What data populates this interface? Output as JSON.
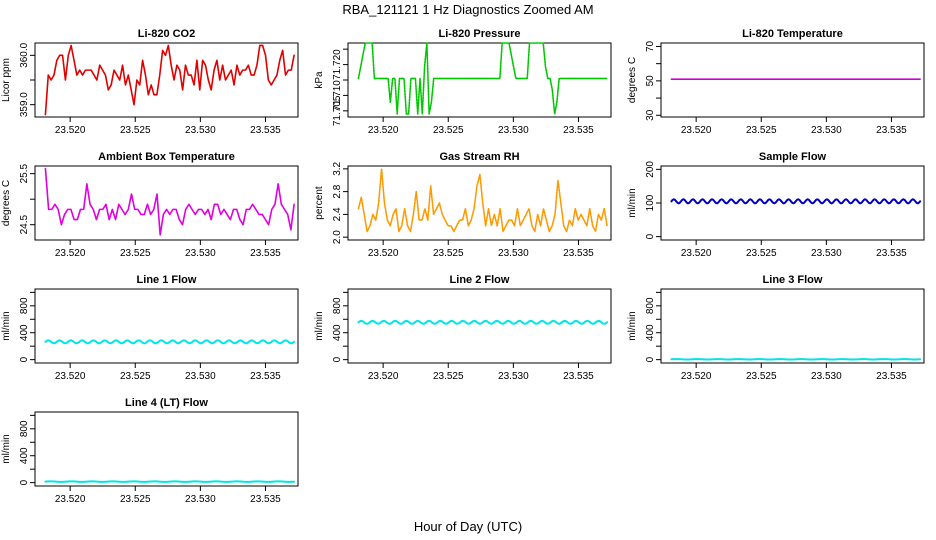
{
  "figure": {
    "title": "RBA_121121  1 Hz Diagnostics Zoomed AM",
    "xlabel": "Hour of Day (UTC)"
  },
  "chart_data": [
    {
      "id": "co2",
      "type": "line",
      "title": "Li-820 CO2",
      "ylabel": "Licor ppm",
      "color": "#e00000",
      "style": "solid",
      "ylim": [
        358.75,
        360.25
      ],
      "yticks": [
        359.0,
        359.5,
        360.0
      ],
      "yticklabels": [
        "359.0",
        "",
        "360.0"
      ],
      "xlim": [
        23.5173,
        23.5375
      ],
      "xticks": [
        23.52,
        23.525,
        23.53,
        23.535
      ],
      "xticklabels": [
        "23.520",
        "23.525",
        "23.530",
        "23.535"
      ],
      "x_range": [
        23.5181,
        23.5372
      ],
      "values": [
        358.8,
        359.6,
        359.5,
        359.6,
        359.9,
        360.0,
        360.0,
        359.5,
        360.0,
        360.2,
        359.9,
        359.6,
        359.7,
        359.6,
        359.7,
        359.7,
        359.7,
        359.6,
        359.5,
        359.8,
        359.7,
        359.6,
        359.3,
        359.4,
        359.7,
        359.6,
        359.5,
        359.8,
        359.4,
        359.6,
        359.3,
        359.0,
        359.5,
        359.4,
        359.9,
        359.6,
        359.2,
        359.4,
        359.2,
        359.2,
        359.6,
        360.1,
        360.0,
        360.2,
        359.8,
        359.5,
        359.8,
        359.7,
        359.3,
        359.8,
        359.6,
        359.6,
        359.4,
        359.9,
        359.3,
        359.9,
        359.8,
        359.5,
        359.3,
        359.7,
        359.9,
        359.5,
        359.8,
        359.5,
        359.6,
        359.7,
        359.4,
        359.8,
        359.6,
        359.7,
        359.7,
        359.8,
        359.6,
        359.6,
        359.8,
        360.2,
        360.2,
        360.0,
        359.5,
        359.4,
        359.5,
        359.6,
        359.9,
        360.1,
        359.6,
        359.7,
        359.7,
        360.0
      ]
    },
    {
      "id": "pressure",
      "type": "line",
      "title": "Li-820 Pressure",
      "ylabel": "kPa",
      "color": "#00c800",
      "style": "dotted",
      "ylim": [
        71.703,
        71.727
      ],
      "yticks": [
        71.705,
        71.71,
        71.715,
        71.72,
        71.725
      ],
      "yticklabels": [
        "71.705",
        "71.710",
        "",
        "71.720",
        ""
      ],
      "xlim": [
        23.5173,
        23.5375
      ],
      "xticks": [
        23.52,
        23.525,
        23.53,
        23.535
      ],
      "xticklabels": [
        "23.520",
        "23.525",
        "23.530",
        "23.535"
      ],
      "x_range": [
        23.5181,
        23.5372
      ],
      "values": [
        71.7155,
        71.7193,
        71.7232,
        71.727,
        71.727,
        71.727,
        71.727,
        71.7155,
        71.7155,
        71.7155,
        71.7155,
        71.7155,
        71.7155,
        71.7155,
        71.7078,
        71.7155,
        71.7155,
        71.704,
        71.7155,
        71.7155,
        71.7155,
        71.704,
        71.704,
        71.7155,
        71.7155,
        71.7155,
        71.704,
        71.7155,
        71.704,
        71.7193,
        71.727,
        71.704,
        71.7078,
        71.7155,
        71.7155,
        71.7155,
        71.7155,
        71.7155,
        71.7155,
        71.7155,
        71.7155,
        71.7155,
        71.7155,
        71.7155,
        71.7155,
        71.7155,
        71.7155,
        71.7155,
        71.7155,
        71.7155,
        71.7155,
        71.7155,
        71.7155,
        71.7155,
        71.7155,
        71.7155,
        71.7155,
        71.7155,
        71.7155,
        71.7155,
        71.7155,
        71.7155,
        71.7155,
        71.727,
        71.727,
        71.727,
        71.727,
        71.7232,
        71.7193,
        71.7155,
        71.7155,
        71.7155,
        71.7155,
        71.7155,
        71.7155,
        71.727,
        71.727,
        71.727,
        71.727,
        71.727,
        71.727,
        71.727,
        71.7193,
        71.7155,
        71.7155,
        71.7117,
        71.704,
        71.7078,
        71.7155,
        71.7155,
        71.7155,
        71.7155,
        71.7155,
        71.7155,
        71.7155,
        71.7155,
        71.7155,
        71.7155,
        71.7155,
        71.7155,
        71.7155,
        71.7155,
        71.7155,
        71.7155,
        71.7155,
        71.7155,
        71.7155,
        71.7155,
        71.7155,
        71.7155
      ]
    },
    {
      "id": "temperature",
      "type": "line",
      "title": "Li-820 Temperature",
      "ylabel": "degrees C",
      "color": "#d000d0",
      "style": "solid",
      "ylim": [
        29,
        72
      ],
      "yticks": [
        30,
        40,
        50,
        60,
        70
      ],
      "yticklabels": [
        "30",
        "",
        "50",
        "",
        "70"
      ],
      "xlim": [
        23.5173,
        23.5375
      ],
      "xticks": [
        23.52,
        23.525,
        23.53,
        23.535
      ],
      "xticklabels": [
        "23.520",
        "23.525",
        "23.530",
        "23.535"
      ],
      "x_range": [
        23.5181,
        23.5372
      ],
      "values": [
        51,
        51
      ]
    },
    {
      "id": "box_temp",
      "type": "line",
      "title": "Ambient Box Temperature",
      "ylabel": "degrees C",
      "color": "#e000e0",
      "style": "solid",
      "ylim": [
        24.2,
        25.65
      ],
      "yticks": [
        24.5,
        25.0,
        25.5
      ],
      "yticklabels": [
        "24.5",
        "",
        "25.5"
      ],
      "xlim": [
        23.5173,
        23.5375
      ],
      "xticks": [
        23.52,
        23.525,
        23.53,
        23.535
      ],
      "xticklabels": [
        "23.520",
        "23.525",
        "23.530",
        "23.535"
      ],
      "x_range": [
        23.5181,
        23.5372
      ],
      "values": [
        25.6,
        24.8,
        24.8,
        24.9,
        24.8,
        24.5,
        24.7,
        24.8,
        24.8,
        24.6,
        24.6,
        24.8,
        24.8,
        25.3,
        24.9,
        24.8,
        24.6,
        24.8,
        24.8,
        24.9,
        24.6,
        24.8,
        24.6,
        24.9,
        24.8,
        24.7,
        24.8,
        25.1,
        24.8,
        24.8,
        24.7,
        24.7,
        24.9,
        24.7,
        24.8,
        25.1,
        24.3,
        24.7,
        24.8,
        24.7,
        24.8,
        24.8,
        24.6,
        24.5,
        24.8,
        24.9,
        24.8,
        24.7,
        24.8,
        24.8,
        24.7,
        24.8,
        24.6,
        24.9,
        24.9,
        24.7,
        24.8,
        24.7,
        24.6,
        24.8,
        24.8,
        24.6,
        24.5,
        24.8,
        24.8,
        24.9,
        24.8,
        24.7,
        24.7,
        24.6,
        24.5,
        24.8,
        24.9,
        25.3,
        24.9,
        24.8,
        24.7,
        24.4,
        24.9
      ]
    },
    {
      "id": "rh",
      "type": "line",
      "title": "Gas Stream RH",
      "ylabel": "percent",
      "color": "#ff9900",
      "style": "dotted",
      "ylim": [
        1.95,
        3.25
      ],
      "yticks": [
        2.0,
        2.4,
        2.8,
        3.2
      ],
      "yticklabels": [
        "2.0",
        "2.4",
        "2.8",
        "3.2"
      ],
      "xlim": [
        23.5173,
        23.5375
      ],
      "xticks": [
        23.52,
        23.525,
        23.53,
        23.535
      ],
      "xticklabels": [
        "23.520",
        "23.525",
        "23.530",
        "23.535"
      ],
      "x_range": [
        23.5181,
        23.5372
      ],
      "values": [
        2.5,
        2.7,
        2.4,
        2.1,
        2.2,
        2.4,
        2.3,
        2.6,
        3.2,
        2.6,
        2.3,
        2.2,
        2.4,
        2.5,
        2.1,
        2.2,
        2.5,
        2.2,
        2.1,
        2.4,
        2.8,
        2.3,
        2.3,
        2.5,
        2.3,
        2.9,
        2.4,
        2.5,
        2.6,
        2.4,
        2.3,
        2.2,
        2.2,
        2.1,
        2.2,
        2.3,
        2.3,
        2.5,
        2.2,
        2.3,
        2.5,
        2.9,
        3.1,
        2.6,
        2.2,
        2.5,
        2.2,
        2.4,
        2.2,
        2.5,
        2.1,
        2.2,
        2.3,
        2.3,
        2.2,
        2.5,
        2.2,
        2.3,
        2.4,
        2.5,
        2.2,
        2.1,
        2.4,
        2.2,
        2.5,
        2.3,
        2.1,
        2.2,
        2.4,
        3.0,
        2.6,
        2.2,
        2.1,
        2.3,
        2.2,
        2.5,
        2.3,
        2.4,
        2.3,
        2.2,
        2.5,
        2.2,
        2.1,
        2.4,
        2.3,
        2.5,
        2.2
      ]
    },
    {
      "id": "sample_flow",
      "type": "line",
      "title": "Sample Flow",
      "ylabel": "ml/min",
      "color": "#0000c0",
      "style": "wavy",
      "ylim": [
        -10,
        210
      ],
      "yticks": [
        0,
        100,
        200
      ],
      "yticklabels": [
        "0",
        "100",
        "200"
      ],
      "xlim": [
        23.5173,
        23.5375
      ],
      "xticks": [
        23.52,
        23.525,
        23.53,
        23.535
      ],
      "xticklabels": [
        "23.520",
        "23.525",
        "23.530",
        "23.535"
      ],
      "x_range": [
        23.5181,
        23.5372
      ],
      "mean": 105,
      "amplitude": 6,
      "cycles": 26
    },
    {
      "id": "line1",
      "type": "line",
      "title": "Line 1 Flow",
      "ylabel": "ml/min",
      "color": "#00e6e6",
      "style": "wavy",
      "ylim": [
        -50,
        1050
      ],
      "yticks": [
        0,
        200,
        400,
        600,
        800,
        1000
      ],
      "yticklabels": [
        "0",
        "",
        "400",
        "",
        "800",
        ""
      ],
      "xlim": [
        23.5173,
        23.5375
      ],
      "xticks": [
        23.52,
        23.525,
        23.53,
        23.535
      ],
      "xticklabels": [
        "23.520",
        "23.525",
        "23.530",
        "23.535"
      ],
      "x_range": [
        23.5181,
        23.5372
      ],
      "mean": 265,
      "amplitude": 22,
      "cycles": 22
    },
    {
      "id": "line2",
      "type": "line",
      "title": "Line 2 Flow",
      "ylabel": "ml/min",
      "color": "#00e6e6",
      "style": "wavy",
      "ylim": [
        -50,
        1050
      ],
      "yticks": [
        0,
        200,
        400,
        600,
        800,
        1000
      ],
      "yticklabels": [
        "0",
        "",
        "400",
        "",
        "800",
        ""
      ],
      "xlim": [
        23.5173,
        23.5375
      ],
      "xticks": [
        23.52,
        23.525,
        23.53,
        23.535
      ],
      "xticklabels": [
        "23.520",
        "23.525",
        "23.530",
        "23.535"
      ],
      "x_range": [
        23.5181,
        23.5372
      ],
      "mean": 555,
      "amplitude": 22,
      "cycles": 22
    },
    {
      "id": "line3",
      "type": "line",
      "title": "Line 3 Flow",
      "ylabel": "ml/min",
      "color": "#00e6e6",
      "style": "wavy",
      "ylim": [
        -50,
        1050
      ],
      "yticks": [
        0,
        200,
        400,
        600,
        800,
        1000
      ],
      "yticklabels": [
        "0",
        "",
        "400",
        "",
        "800",
        ""
      ],
      "xlim": [
        23.5173,
        23.5375
      ],
      "xticks": [
        23.52,
        23.525,
        23.53,
        23.535
      ],
      "xticklabels": [
        "23.520",
        "23.525",
        "23.530",
        "23.535"
      ],
      "x_range": [
        23.5181,
        23.5372
      ],
      "mean": 5,
      "amplitude": 3,
      "cycles": 12
    },
    {
      "id": "line4",
      "type": "line",
      "title": "Line 4 (LT) Flow",
      "ylabel": "ml/min",
      "color": "#00e6e6",
      "style": "wavy",
      "ylim": [
        -50,
        1050
      ],
      "yticks": [
        0,
        200,
        400,
        600,
        800,
        1000
      ],
      "yticklabels": [
        "0",
        "",
        "400",
        "",
        "800",
        ""
      ],
      "xlim": [
        23.5173,
        23.5375
      ],
      "xticks": [
        23.52,
        23.525,
        23.53,
        23.535
      ],
      "xticklabels": [
        "23.520",
        "23.525",
        "23.530",
        "23.535"
      ],
      "x_range": [
        23.5181,
        23.5372
      ],
      "mean": 15,
      "amplitude": 4,
      "cycles": 12
    }
  ]
}
